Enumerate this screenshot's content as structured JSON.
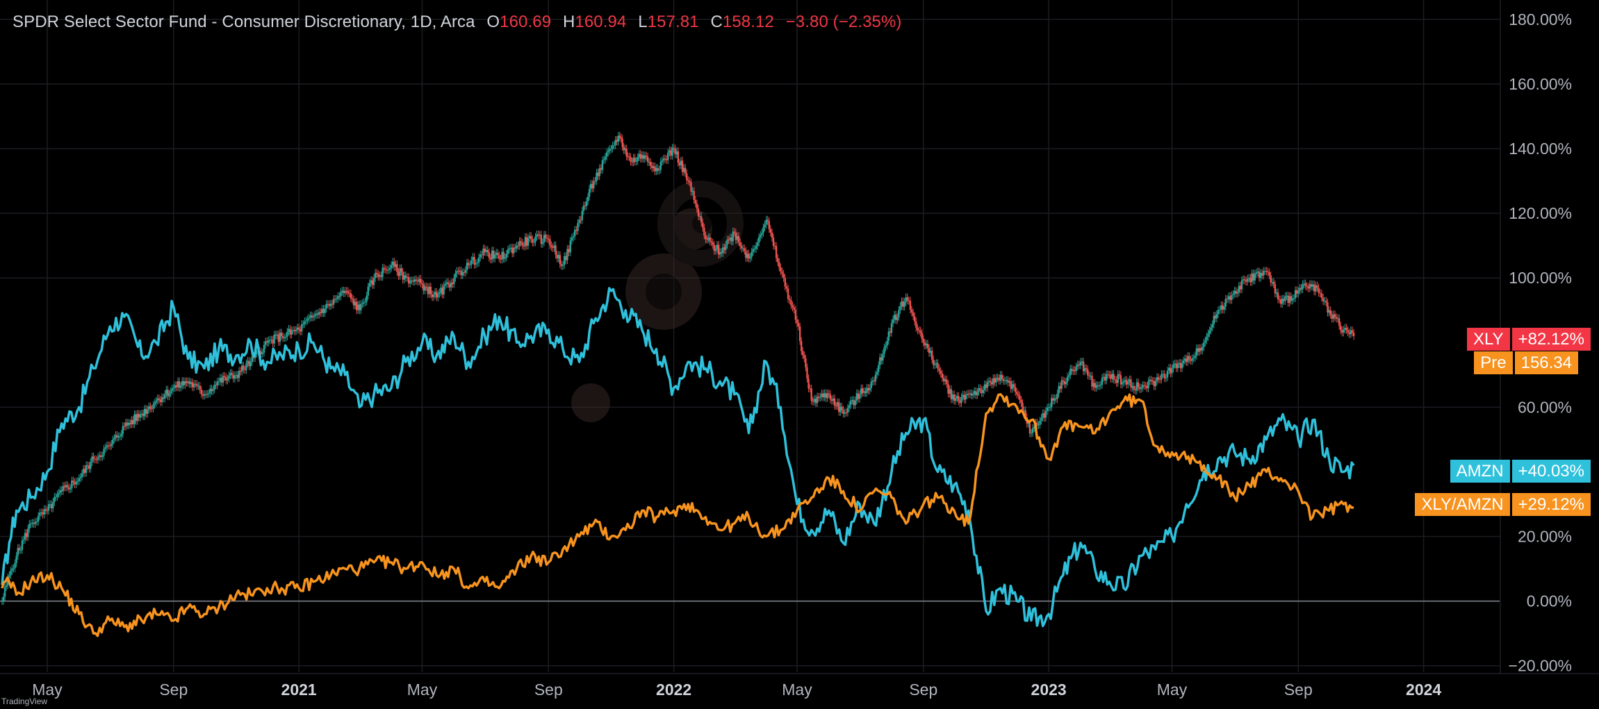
{
  "header": {
    "title": "SPDR Select Sector Fund - Consumer Discretionary, 1D, Arca",
    "open_label": "O",
    "open": "160.69",
    "high_label": "H",
    "high": "160.94",
    "low_label": "L",
    "low": "157.81",
    "close_label": "C",
    "close": "158.12",
    "change": "−3.80 (−2.35%)"
  },
  "credit": "TradingView",
  "colors": {
    "background": "#000000",
    "grid": "#1b1d22",
    "axis_text": "#b2b5be",
    "up_candle": "#26a69a",
    "down_candle": "#ef5350",
    "amzn_line": "#2fc1dc",
    "ratio_line": "#f7931e",
    "xly_tag": "#f23645",
    "pre_tag": "#f7931e",
    "amzn_tag": "#2fc1dc",
    "ratio_tag": "#f7931e"
  },
  "tags": [
    {
      "name": "XLY",
      "value": "+82.12%",
      "color": "#f23645"
    },
    {
      "name": "Pre",
      "value": "156.34",
      "color": "#f7931e"
    },
    {
      "name": "AMZN",
      "value": "+40.03%",
      "color": "#2fc1dc"
    },
    {
      "name": "XLY/AMZN",
      "value": "+29.12%",
      "color": "#f7931e"
    }
  ],
  "chart_data": {
    "type": "line",
    "x_ticks": [
      "May",
      "Sep",
      "2021",
      "May",
      "Sep",
      "2022",
      "May",
      "Sep",
      "2023",
      "May",
      "Sep",
      "2024"
    ],
    "x_tick_dates": [
      "2020-05-01",
      "2020-09-01",
      "2021-01-01",
      "2021-05-01",
      "2021-09-01",
      "2022-01-01",
      "2022-05-01",
      "2022-09-01",
      "2023-01-01",
      "2023-05-01",
      "2023-09-01",
      "2024-01-01"
    ],
    "bold_ticks": [
      "2021",
      "2022",
      "2023",
      "2024"
    ],
    "y_ticks": [
      "180.00%",
      "160.00%",
      "140.00%",
      "120.00%",
      "100.00%",
      "60.00%",
      "20.00%",
      "0.00%",
      "−20.00%"
    ],
    "y_tick_values": [
      180,
      160,
      140,
      120,
      100,
      60,
      20,
      0,
      -20
    ],
    "ylim": [
      -22,
      186
    ],
    "xlim": [
      "2020-03-16",
      "2024-03-15"
    ],
    "zero_line": 0,
    "series": [
      {
        "name": "XLY",
        "style": "candles",
        "x": [
          "2020-03-18",
          "2020-03-25",
          "2020-04-01",
          "2020-04-15",
          "2020-05-01",
          "2020-05-15",
          "2020-06-01",
          "2020-06-15",
          "2020-07-01",
          "2020-07-15",
          "2020-08-01",
          "2020-08-15",
          "2020-09-01",
          "2020-09-15",
          "2020-10-01",
          "2020-10-15",
          "2020-11-01",
          "2020-11-15",
          "2020-12-01",
          "2020-12-15",
          "2021-01-01",
          "2021-01-15",
          "2021-02-01",
          "2021-02-15",
          "2021-03-01",
          "2021-03-15",
          "2021-04-01",
          "2021-04-15",
          "2021-05-01",
          "2021-05-15",
          "2021-06-01",
          "2021-06-15",
          "2021-07-01",
          "2021-07-15",
          "2021-08-01",
          "2021-08-15",
          "2021-09-01",
          "2021-09-15",
          "2021-10-01",
          "2021-10-15",
          "2021-11-01",
          "2021-11-08",
          "2021-11-20",
          "2021-12-01",
          "2021-12-15",
          "2022-01-01",
          "2022-01-15",
          "2022-02-01",
          "2022-02-15",
          "2022-03-01",
          "2022-03-15",
          "2022-04-01",
          "2022-04-15",
          "2022-05-01",
          "2022-05-15",
          "2022-06-01",
          "2022-06-15",
          "2022-07-01",
          "2022-07-15",
          "2022-08-01",
          "2022-08-15",
          "2022-09-01",
          "2022-09-15",
          "2022-10-01",
          "2022-10-15",
          "2022-11-01",
          "2022-11-15",
          "2022-12-01",
          "2022-12-15",
          "2023-01-01",
          "2023-01-15",
          "2023-02-01",
          "2023-02-15",
          "2023-03-01",
          "2023-03-15",
          "2023-04-01",
          "2023-04-15",
          "2023-05-01",
          "2023-05-15",
          "2023-06-01",
          "2023-06-15",
          "2023-07-01",
          "2023-07-15",
          "2023-08-01",
          "2023-08-15",
          "2023-09-01",
          "2023-09-15",
          "2023-10-01",
          "2023-10-15",
          "2023-10-25"
        ],
        "values": [
          0,
          8,
          14,
          24,
          28,
          34,
          38,
          44,
          48,
          54,
          58,
          62,
          66,
          68,
          64,
          68,
          70,
          74,
          80,
          82,
          84,
          88,
          92,
          96,
          90,
          100,
          104,
          100,
          98,
          94,
          100,
          104,
          108,
          106,
          110,
          112,
          112,
          104,
          118,
          130,
          140,
          144,
          136,
          138,
          134,
          140,
          130,
          112,
          108,
          114,
          106,
          118,
          102,
          86,
          62,
          64,
          58,
          64,
          68,
          86,
          94,
          80,
          72,
          62,
          64,
          66,
          70,
          64,
          52,
          60,
          68,
          74,
          66,
          70,
          68,
          66,
          68,
          72,
          74,
          80,
          90,
          96,
          100,
          102,
          92,
          96,
          98,
          90,
          84,
          82
        ]
      },
      {
        "name": "AMZN",
        "style": "line",
        "x": [
          "2020-03-18",
          "2020-03-25",
          "2020-04-01",
          "2020-04-15",
          "2020-05-01",
          "2020-05-15",
          "2020-06-01",
          "2020-06-15",
          "2020-07-01",
          "2020-07-15",
          "2020-08-01",
          "2020-08-15",
          "2020-09-01",
          "2020-09-15",
          "2020-10-01",
          "2020-10-15",
          "2020-11-01",
          "2020-11-15",
          "2020-12-01",
          "2020-12-15",
          "2021-01-01",
          "2021-01-15",
          "2021-02-01",
          "2021-02-15",
          "2021-03-01",
          "2021-03-15",
          "2021-04-01",
          "2021-04-15",
          "2021-05-01",
          "2021-05-15",
          "2021-06-01",
          "2021-06-15",
          "2021-07-01",
          "2021-07-15",
          "2021-08-01",
          "2021-08-15",
          "2021-09-01",
          "2021-09-15",
          "2021-10-01",
          "2021-10-15",
          "2021-11-01",
          "2021-11-15",
          "2021-12-01",
          "2021-12-15",
          "2022-01-01",
          "2022-01-15",
          "2022-02-01",
          "2022-02-15",
          "2022-03-01",
          "2022-03-15",
          "2022-04-01",
          "2022-04-15",
          "2022-05-01",
          "2022-05-15",
          "2022-06-01",
          "2022-06-15",
          "2022-07-01",
          "2022-07-15",
          "2022-08-01",
          "2022-08-15",
          "2022-09-01",
          "2022-09-15",
          "2022-10-01",
          "2022-10-15",
          "2022-11-01",
          "2022-11-15",
          "2022-12-01",
          "2022-12-15",
          "2023-01-01",
          "2023-01-15",
          "2023-02-01",
          "2023-02-15",
          "2023-03-01",
          "2023-03-15",
          "2023-04-01",
          "2023-04-15",
          "2023-05-01",
          "2023-05-15",
          "2023-06-01",
          "2023-06-15",
          "2023-07-01",
          "2023-07-15",
          "2023-08-01",
          "2023-08-15",
          "2023-09-01",
          "2023-09-15",
          "2023-10-01",
          "2023-10-15",
          "2023-10-25"
        ],
        "values": [
          5,
          18,
          28,
          32,
          40,
          55,
          60,
          72,
          85,
          88,
          76,
          80,
          91,
          75,
          72,
          78,
          76,
          80,
          74,
          76,
          78,
          80,
          72,
          70,
          60,
          64,
          66,
          74,
          80,
          76,
          82,
          74,
          82,
          88,
          80,
          82,
          84,
          78,
          74,
          86,
          96,
          90,
          84,
          78,
          66,
          74,
          72,
          68,
          64,
          52,
          74,
          60,
          30,
          22,
          28,
          18,
          30,
          24,
          40,
          52,
          56,
          40,
          36,
          28,
          -3,
          4,
          0,
          -6,
          -4,
          8,
          18,
          10,
          6,
          4,
          14,
          16,
          20,
          30,
          40,
          44,
          46,
          44,
          50,
          56,
          50,
          56,
          44,
          40,
          42
        ]
      },
      {
        "name": "XLY/AMZN",
        "style": "line",
        "x": [
          "2020-03-18",
          "2020-03-25",
          "2020-04-01",
          "2020-04-15",
          "2020-05-01",
          "2020-05-15",
          "2020-06-01",
          "2020-06-15",
          "2020-07-01",
          "2020-07-15",
          "2020-08-01",
          "2020-08-15",
          "2020-09-01",
          "2020-09-15",
          "2020-10-01",
          "2020-10-15",
          "2020-11-01",
          "2020-11-15",
          "2020-12-01",
          "2020-12-15",
          "2021-01-01",
          "2021-01-15",
          "2021-02-01",
          "2021-02-15",
          "2021-03-01",
          "2021-03-15",
          "2021-04-01",
          "2021-04-15",
          "2021-05-01",
          "2021-05-15",
          "2021-06-01",
          "2021-06-15",
          "2021-07-01",
          "2021-07-15",
          "2021-08-01",
          "2021-08-15",
          "2021-09-01",
          "2021-09-15",
          "2021-10-01",
          "2021-10-15",
          "2021-11-01",
          "2021-11-15",
          "2021-12-01",
          "2021-12-15",
          "2022-01-01",
          "2022-01-15",
          "2022-02-01",
          "2022-02-15",
          "2022-03-01",
          "2022-03-15",
          "2022-04-01",
          "2022-04-15",
          "2022-05-01",
          "2022-05-15",
          "2022-06-01",
          "2022-06-15",
          "2022-07-01",
          "2022-07-15",
          "2022-08-01",
          "2022-08-15",
          "2022-09-01",
          "2022-09-15",
          "2022-10-01",
          "2022-10-15",
          "2022-11-01",
          "2022-11-15",
          "2022-12-01",
          "2022-12-15",
          "2023-01-01",
          "2023-01-15",
          "2023-02-01",
          "2023-02-15",
          "2023-03-01",
          "2023-03-15",
          "2023-04-01",
          "2023-04-15",
          "2023-05-01",
          "2023-05-15",
          "2023-06-01",
          "2023-06-15",
          "2023-07-01",
          "2023-07-15",
          "2023-08-01",
          "2023-08-15",
          "2023-09-01",
          "2023-09-15",
          "2023-10-01",
          "2023-10-15",
          "2023-10-25"
        ],
        "values": [
          4,
          6,
          2,
          6,
          8,
          4,
          -4,
          -10,
          -6,
          -8,
          -6,
          -4,
          -6,
          -2,
          -4,
          -2,
          2,
          2,
          4,
          4,
          4,
          6,
          8,
          10,
          10,
          12,
          12,
          10,
          12,
          8,
          10,
          4,
          6,
          4,
          10,
          14,
          12,
          16,
          20,
          24,
          20,
          22,
          28,
          26,
          28,
          30,
          26,
          22,
          24,
          26,
          20,
          22,
          28,
          32,
          38,
          34,
          28,
          34,
          32,
          24,
          30,
          32,
          28,
          24,
          58,
          64,
          60,
          56,
          44,
          54,
          54,
          52,
          58,
          62,
          62,
          48,
          46,
          44,
          42,
          38,
          32,
          36,
          40,
          38,
          34,
          26,
          28,
          30,
          29
        ]
      }
    ]
  }
}
